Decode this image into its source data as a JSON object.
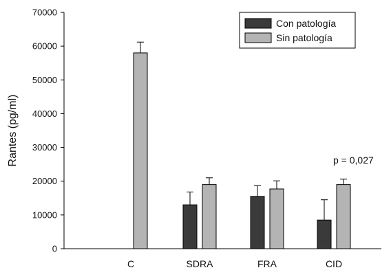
{
  "chart_data": {
    "type": "bar",
    "categories": [
      "C",
      "SDRA",
      "FRA",
      "CID"
    ],
    "series": [
      {
        "name": "Con patología",
        "color": "#3a3a3a",
        "values": [
          null,
          13000,
          15500,
          8500
        ],
        "errors": [
          null,
          3800,
          3200,
          6000
        ]
      },
      {
        "name": "Sin patología",
        "color": "#b4b4b4",
        "values": [
          58000,
          19000,
          17700,
          19000
        ],
        "errors": [
          3200,
          2000,
          2400,
          1600
        ]
      }
    ],
    "ylabel": "Rantes (pg/ml)",
    "ylim": [
      0,
      70000
    ],
    "yticks": [
      0,
      10000,
      20000,
      30000,
      40000,
      50000,
      60000,
      70000
    ],
    "legend_position": "top-right",
    "annotation": "p = 0,027",
    "grid": false
  }
}
